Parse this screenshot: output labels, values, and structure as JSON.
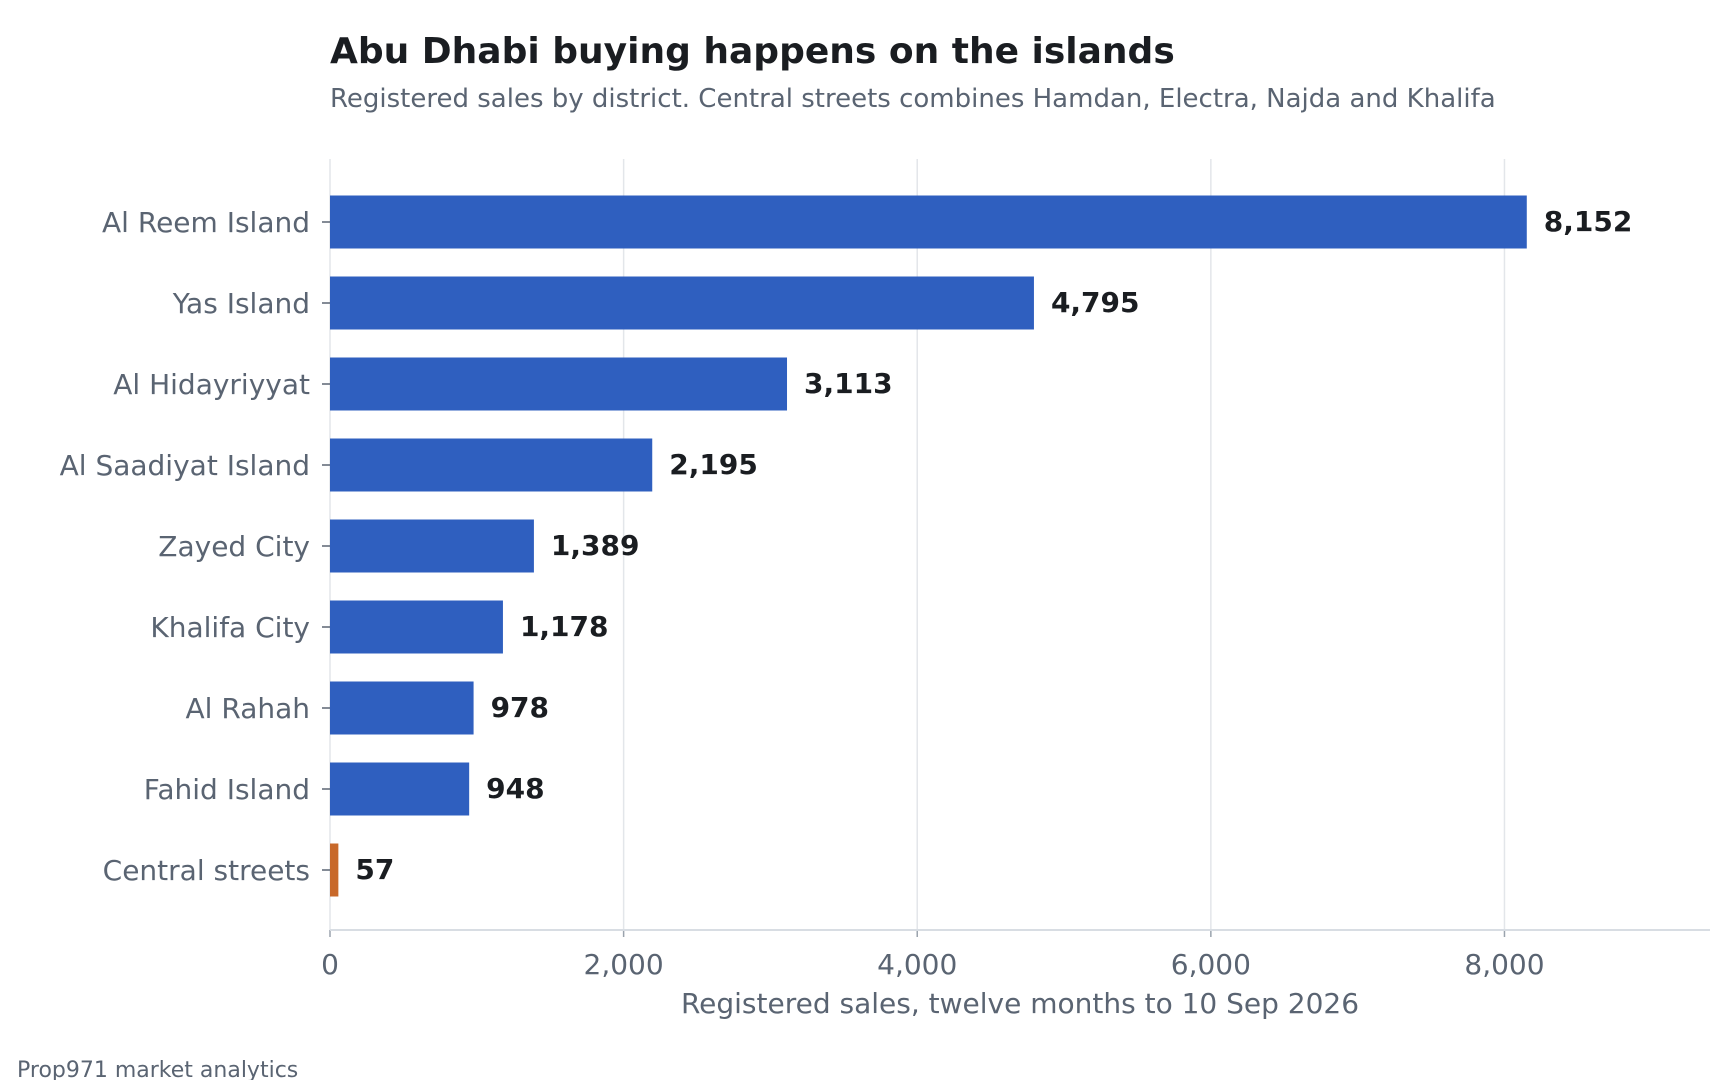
{
  "chart_data": {
    "type": "bar",
    "orientation": "horizontal",
    "title": "Abu Dhabi buying happens on the islands",
    "subtitle": "Registered sales by district. Central streets combines Hamdan, Electra, Najda and Khalifa",
    "categories": [
      "Al Reem Island",
      "Yas Island",
      "Al Hidayriyyat",
      "Al Saadiyat Island",
      "Zayed City",
      "Khalifa City",
      "Al Rahah",
      "Fahid Island",
      "Central streets"
    ],
    "values": [
      8152,
      4795,
      3113,
      2195,
      1389,
      1178,
      978,
      948,
      57
    ],
    "value_labels": [
      "8,152",
      "4,795",
      "3,113",
      "2,195",
      "1,389",
      "1,178",
      "978",
      "948",
      "57"
    ],
    "highlight_index": 8,
    "xlabel": "Registered sales, twelve months to 10 Sep 2026",
    "xlim": [
      0,
      9400
    ],
    "xticks": [
      0,
      2000,
      4000,
      6000,
      8000
    ],
    "xtick_labels": [
      "0",
      "2,000",
      "4,000",
      "6,000",
      "8,000"
    ],
    "grid": true,
    "colors": {
      "bar": "#2f5fbf",
      "highlight": "#c8692a",
      "grid": "#e3e6ea",
      "axis": "#d8dde3"
    },
    "source": "Prop971 market analytics"
  }
}
